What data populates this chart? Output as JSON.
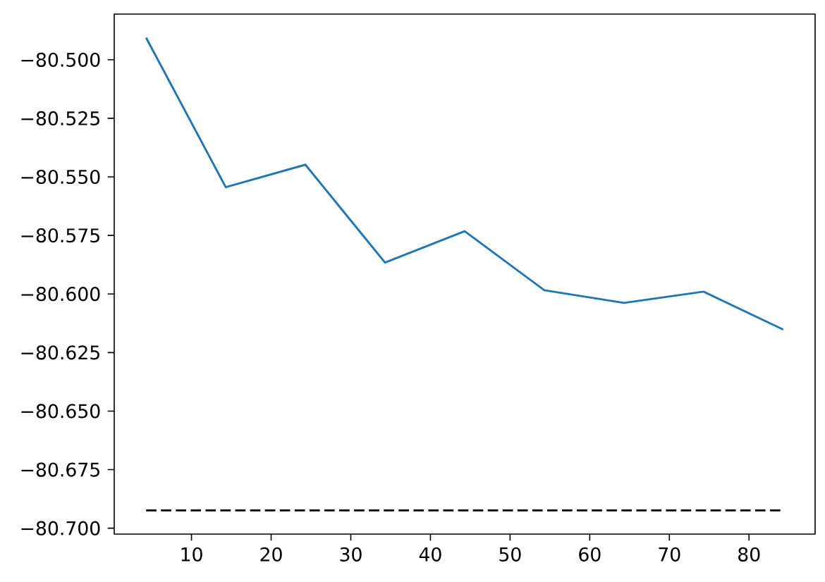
{
  "chart_data": {
    "type": "line",
    "xlim": [
      0.3,
      88.3
    ],
    "ylim": [
      -80.7025,
      -80.4805
    ],
    "xticks": [
      10,
      20,
      30,
      40,
      50,
      60,
      70,
      80
    ],
    "yticks": [
      {
        "value": -80.5,
        "label": "−80.500"
      },
      {
        "value": -80.525,
        "label": "−80.525"
      },
      {
        "value": -80.55,
        "label": "−80.550"
      },
      {
        "value": -80.575,
        "label": "−80.575"
      },
      {
        "value": -80.6,
        "label": "−80.600"
      },
      {
        "value": -80.625,
        "label": "−80.625"
      },
      {
        "value": -80.65,
        "label": "−80.650"
      },
      {
        "value": -80.675,
        "label": "−80.675"
      },
      {
        "value": -80.7,
        "label": "−80.700"
      }
    ],
    "series": [
      {
        "color": "#1f77b4",
        "x": [
          4.3,
          14.3,
          24.3,
          34.3,
          44.3,
          54.3,
          64.3,
          74.3,
          84.3
        ],
        "values": [
          -80.4906,
          -80.5544,
          -80.5448,
          -80.5866,
          -80.5732,
          -80.5984,
          -80.6038,
          -80.599,
          -80.6152
        ],
        "line_style": "solid"
      },
      {
        "color": "#000000",
        "x": [
          4.3,
          84.3
        ],
        "values": [
          -80.6924,
          -80.6924
        ],
        "line_style": "dashed"
      }
    ]
  }
}
